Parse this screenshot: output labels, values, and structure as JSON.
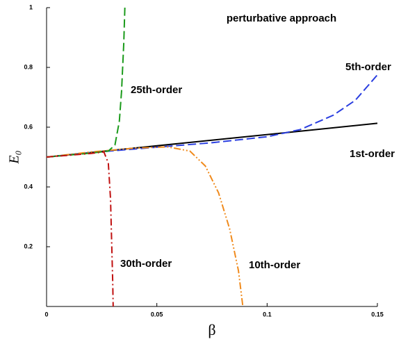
{
  "chart_data": {
    "type": "line",
    "title": "perturbative approach",
    "x_label": "β",
    "y_label": "E₀",
    "xlim": [
      0,
      0.15
    ],
    "xticks": [
      0,
      0.05,
      0.1,
      0.15
    ],
    "ylim": [
      0,
      1
    ],
    "yticks": [
      0.2,
      0.4,
      0.6,
      0.8,
      1
    ],
    "series": [
      {
        "name": "1st-order",
        "color": "#000000",
        "dash": "solid",
        "x": [
          0,
          0.15
        ],
        "values": [
          0.5,
          0.613
        ]
      },
      {
        "name": "5th-order",
        "color": "#2a3ee0",
        "dash": "dashed",
        "x": [
          0,
          0.025,
          0.05,
          0.075,
          0.1,
          0.115,
          0.13,
          0.14,
          0.15
        ],
        "values": [
          0.5,
          0.518,
          0.533,
          0.548,
          0.568,
          0.592,
          0.64,
          0.69,
          0.775
        ]
      },
      {
        "name": "10th-order",
        "color": "#f08a1c",
        "dash": "dashdotdot",
        "x": [
          0,
          0.02,
          0.04,
          0.055,
          0.065,
          0.072,
          0.078,
          0.083,
          0.087,
          0.089
        ],
        "values": [
          0.5,
          0.517,
          0.53,
          0.534,
          0.52,
          0.47,
          0.38,
          0.26,
          0.12,
          0
        ]
      },
      {
        "name": "25th-order",
        "color": "#1a9a1a",
        "dash": "dashed",
        "x": [
          0,
          0.02,
          0.028,
          0.031,
          0.033,
          0.034,
          0.035,
          0.0355
        ],
        "values": [
          0.5,
          0.513,
          0.52,
          0.54,
          0.62,
          0.72,
          0.88,
          1
        ]
      },
      {
        "name": "30th-order",
        "color": "#c01010",
        "dash": "dashdot",
        "x": [
          0,
          0.02,
          0.026,
          0.028,
          0.029,
          0.0295,
          0.03,
          0.0302
        ],
        "values": [
          0.5,
          0.512,
          0.517,
          0.48,
          0.36,
          0.22,
          0.08,
          0
        ]
      }
    ]
  }
}
